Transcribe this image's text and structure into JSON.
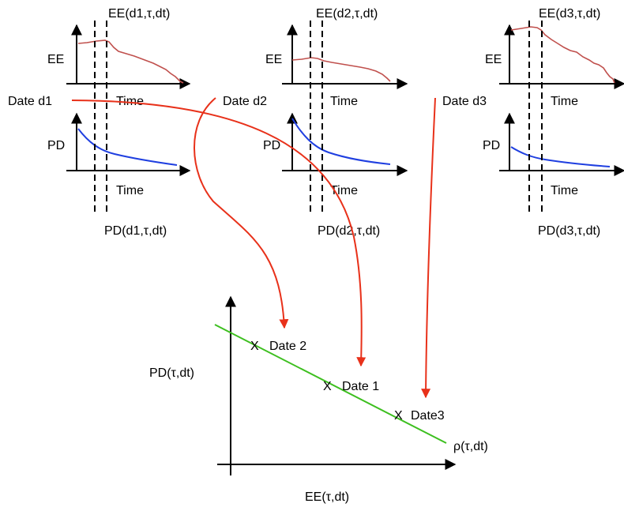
{
  "panels": [
    {
      "date_label": "Date d1",
      "ee_axis": "EE",
      "pd_axis": "PD",
      "time_top": "Time",
      "time_bottom": "Time",
      "ee_label": "EE(d1,τ,dt)",
      "pd_label": "PD(d1,τ,dt)"
    },
    {
      "date_label": "Date d2",
      "ee_axis": "EE",
      "pd_axis": "PD",
      "time_top": "Time",
      "time_bottom": "Time",
      "ee_label": "EE(d2,τ,dt)",
      "pd_label": "PD(d2,τ,dt)"
    },
    {
      "date_label": "Date d3",
      "ee_axis": "EE",
      "pd_axis": "PD",
      "time_top": "Time",
      "time_bottom": "Time",
      "ee_label": "EE(d3,τ,dt)",
      "pd_label": "PD(d3,τ,dt)"
    }
  ],
  "summary": {
    "y_label": "PD(τ,dt)",
    "x_label": "EE(τ,dt)",
    "line_label": "ρ(τ,dt)",
    "points": [
      {
        "marker": "X",
        "label": "Date 2"
      },
      {
        "marker": "X",
        "label": "Date 1"
      },
      {
        "marker": "X",
        "label": "Date3"
      }
    ]
  },
  "colors": {
    "ee_curve": "#c0504d",
    "pd_curve": "#1f3fe0",
    "arrow": "#e8311a",
    "regression_line": "#3dbf1f",
    "axis": "#000000"
  }
}
